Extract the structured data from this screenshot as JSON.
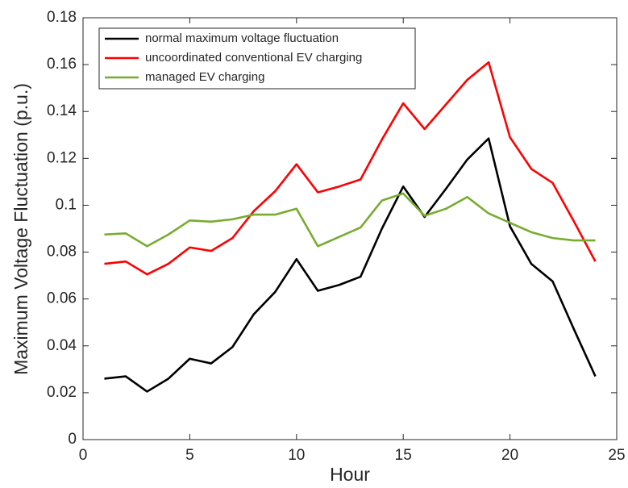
{
  "chart_data": {
    "type": "line",
    "xlabel": "Hour",
    "ylabel": "Maximum Voltage Fluctuation (p.u.)",
    "x": [
      1,
      2,
      3,
      4,
      5,
      6,
      7,
      8,
      9,
      10,
      11,
      12,
      13,
      14,
      15,
      16,
      17,
      18,
      19,
      20,
      21,
      22,
      23,
      24
    ],
    "series": [
      {
        "name": "normal maximum voltage fluctuation",
        "color": "#000000",
        "values": [
          0.026,
          0.027,
          0.0205,
          0.026,
          0.0345,
          0.0325,
          0.0395,
          0.0535,
          0.063,
          0.077,
          0.0635,
          0.066,
          0.0695,
          0.09,
          0.108,
          0.095,
          0.107,
          0.1195,
          0.1285,
          0.091,
          0.075,
          0.0675,
          0.047,
          0.027
        ]
      },
      {
        "name": "uncoordinated conventional EV charging",
        "color": "#ff0000",
        "values": [
          0.075,
          0.076,
          0.0705,
          0.075,
          0.082,
          0.0805,
          0.086,
          0.0975,
          0.106,
          0.1175,
          0.1055,
          0.108,
          0.111,
          0.128,
          0.1435,
          0.1325,
          0.143,
          0.1535,
          0.161,
          0.129,
          0.1155,
          0.1095,
          0.093,
          0.076
        ]
      },
      {
        "name": "managed EV charging",
        "color": "#77ac30",
        "values": [
          0.0875,
          0.088,
          0.0825,
          0.0875,
          0.0935,
          0.093,
          0.094,
          0.096,
          0.096,
          0.0985,
          0.0825,
          0.0865,
          0.0905,
          0.102,
          0.105,
          0.0955,
          0.0985,
          0.1035,
          0.0965,
          0.0925,
          0.0885,
          0.086,
          0.085,
          0.085
        ]
      }
    ],
    "xlim": [
      0,
      25
    ],
    "xticks": [
      0,
      5,
      10,
      15,
      20,
      25
    ],
    "ylim": [
      0,
      0.18
    ],
    "yticks": [
      0,
      0.02,
      0.04,
      0.06,
      0.08,
      0.1,
      0.12,
      0.14,
      0.16,
      0.18
    ],
    "legend": "upper left"
  }
}
